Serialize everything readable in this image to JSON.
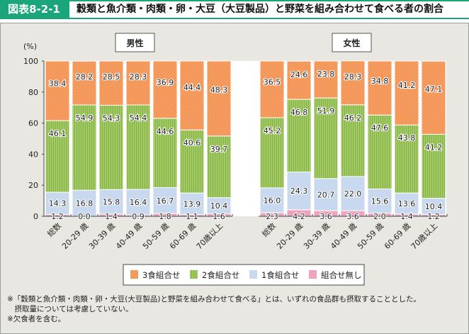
{
  "header": {
    "figure_id": "図表8-2-1",
    "title": "穀類と魚介類・肉類・卵・大豆（大豆製品）と野菜を組み合わせて食べる者の割合"
  },
  "chart_data": {
    "type": "bar",
    "stacked": true,
    "title": "穀類と魚介類・肉類・卵・大豆（大豆製品）と野菜を組み合わせて食べる者の割合",
    "ylabel": "(%)",
    "ylim": [
      0,
      100
    ],
    "yticks": [
      "0",
      "20",
      "40",
      "60",
      "80",
      "100"
    ],
    "legend_position": "bottom",
    "categories": [
      "総数",
      "20-29 歳",
      "30-39 歳",
      "40-49 歳",
      "50-59 歳",
      "60-69 歳",
      "70歳以上"
    ],
    "groups": [
      {
        "name": "男性",
        "series": [
          {
            "name": "組合せ無し",
            "values": [
              1.2,
              0.0,
              1.4,
              0.9,
              1.8,
              1.1,
              1.6
            ]
          },
          {
            "name": "1食組合せ",
            "values": [
              14.3,
              16.8,
              15.8,
              16.4,
              16.7,
              13.9,
              10.4
            ]
          },
          {
            "name": "2食組合せ",
            "values": [
              46.1,
              54.9,
              54.3,
              54.4,
              44.6,
              40.6,
              39.7
            ]
          },
          {
            "name": "3食組合せ",
            "values": [
              38.4,
              28.2,
              28.5,
              28.3,
              36.9,
              44.4,
              48.3
            ]
          }
        ]
      },
      {
        "name": "女性",
        "series": [
          {
            "name": "組合せ無し",
            "values": [
              2.3,
              4.2,
              3.6,
              3.6,
              2.0,
              1.4,
              1.2
            ]
          },
          {
            "name": "1食組合せ",
            "values": [
              16.0,
              24.3,
              20.7,
              22.0,
              15.6,
              13.6,
              10.4
            ]
          },
          {
            "name": "2食組合せ",
            "values": [
              45.2,
              46.8,
              51.9,
              46.2,
              47.6,
              43.8,
              41.2
            ]
          },
          {
            "name": "3食組合せ",
            "values": [
              36.5,
              24.6,
              23.8,
              28.3,
              34.8,
              41.2,
              47.1
            ]
          }
        ]
      }
    ],
    "legend": [
      "3食組合せ",
      "2食組合せ",
      "1食組合せ",
      "組合せ無し"
    ]
  },
  "colors": {
    "3食組合せ": "#f59a5c",
    "2食組合せ": "#9cc65b",
    "1食組合せ": "#c8d8ee",
    "組合せ無し": "#efa3bf",
    "accent": "#1aa57a"
  },
  "notes": [
    "※「穀類と魚介類・肉類・卵・大豆(大豆製品)と野菜を組み合わせて食べる」とは、いずれの食品群も摂取することとした。",
    "　摂取量については考慮していない。",
    "※欠食者を含む。"
  ]
}
